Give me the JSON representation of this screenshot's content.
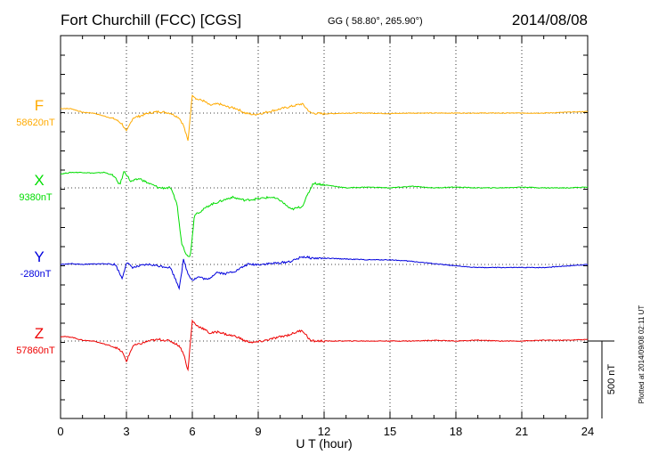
{
  "header": {
    "station": "Fort Churchill (FCC)  [CGS]",
    "coords": "GG ( 58.80°, 265.90°)",
    "date": "2014/08/08"
  },
  "footer_note": "Plotted at 2014/09/08 02:11  UT",
  "chart_data": {
    "type": "line",
    "title": "Fort Churchill (FCC)  [CGS]",
    "xlabel": "U T (hour)",
    "xlim": [
      0,
      24
    ],
    "x_ticks": [
      0,
      3,
      6,
      9,
      12,
      15,
      18,
      21,
      24
    ],
    "x_tick_labels": [
      "0",
      "3",
      "6",
      "9",
      "12",
      "15",
      "18",
      "21",
      "24"
    ],
    "grid": true,
    "scale_bar_label": "500 nT",
    "scale_bar_nT": 500,
    "series": [
      {
        "name": "F",
        "baseline_label": "58620nT",
        "baseline_nT": 58620,
        "color": "#ffaa00",
        "x": [
          0,
          0.5,
          1,
          1.5,
          2,
          2.5,
          2.8,
          3,
          3.3,
          3.6,
          4,
          4.5,
          5,
          5.4,
          5.6,
          5.8,
          6,
          6.2,
          6.5,
          6.8,
          7.2,
          7.6,
          8,
          8.4,
          8.8,
          9.2,
          9.8,
          10.4,
          11,
          11.4,
          12,
          13,
          14,
          15,
          16,
          17,
          18,
          19,
          20,
          21,
          22,
          23,
          24
        ],
        "y": [
          30,
          28,
          5,
          0,
          -20,
          -40,
          -70,
          -120,
          -30,
          -20,
          0,
          10,
          0,
          -30,
          -80,
          -180,
          120,
          90,
          80,
          50,
          60,
          40,
          30,
          0,
          -10,
          0,
          20,
          40,
          60,
          0,
          -5,
          0,
          0,
          -3,
          0,
          0,
          0,
          0,
          0,
          0,
          0,
          5,
          10
        ]
      },
      {
        "name": "X",
        "baseline_label": "9380nT",
        "baseline_nT": 9380,
        "color": "#00dd00",
        "x": [
          0,
          0.5,
          1,
          1.5,
          2,
          2.4,
          2.7,
          2.9,
          3.2,
          3.6,
          4,
          4.5,
          5,
          5.3,
          5.5,
          5.7,
          5.9,
          6.1,
          6.4,
          6.8,
          7.2,
          7.8,
          8.4,
          9,
          9.6,
          10,
          10.5,
          11,
          11.5,
          12,
          13,
          14,
          15,
          16,
          17,
          18,
          19,
          20,
          21,
          22,
          23,
          24
        ],
        "y": [
          90,
          100,
          100,
          95,
          100,
          80,
          20,
          110,
          40,
          60,
          30,
          0,
          0,
          -100,
          -350,
          -420,
          -450,
          -170,
          -150,
          -110,
          -90,
          -60,
          -80,
          -70,
          -60,
          -80,
          -140,
          -120,
          30,
          20,
          0,
          5,
          0,
          10,
          0,
          5,
          0,
          0,
          5,
          0,
          0,
          5
        ]
      },
      {
        "name": "Y",
        "baseline_label": "-280nT",
        "baseline_nT": -280,
        "color": "#0000dd",
        "x": [
          0,
          0.5,
          1,
          1.5,
          2,
          2.5,
          2.8,
          3,
          3.3,
          3.6,
          4,
          4.5,
          5,
          5.4,
          5.6,
          5.8,
          6,
          6.3,
          6.7,
          7.1,
          7.5,
          8,
          8.5,
          9,
          10,
          10.5,
          11,
          11.5,
          12,
          13,
          14,
          15,
          16,
          17,
          18,
          19,
          20,
          21,
          22,
          23,
          24
        ],
        "y": [
          0,
          5,
          0,
          3,
          5,
          0,
          -90,
          10,
          -20,
          -10,
          0,
          -10,
          -20,
          -150,
          30,
          -60,
          -100,
          -80,
          -100,
          -50,
          -60,
          -40,
          0,
          0,
          10,
          20,
          50,
          40,
          40,
          35,
          30,
          30,
          20,
          5,
          -10,
          -20,
          -20,
          -20,
          -20,
          -10,
          0
        ]
      },
      {
        "name": "Z",
        "baseline_label": "57860nT",
        "baseline_nT": 57860,
        "color": "#ee0000",
        "x": [
          0,
          0.5,
          1,
          1.5,
          2,
          2.5,
          2.8,
          3,
          3.3,
          3.6,
          4,
          4.5,
          5,
          5.4,
          5.6,
          5.8,
          6,
          6.2,
          6.5,
          6.8,
          7.2,
          7.6,
          8,
          8.4,
          8.8,
          9.2,
          9.8,
          10.4,
          11,
          11.4,
          12,
          13,
          14,
          15,
          16,
          17,
          18,
          19,
          20,
          21,
          22,
          23,
          24
        ],
        "y": [
          30,
          25,
          5,
          0,
          -20,
          -40,
          -70,
          -130,
          -30,
          -20,
          0,
          10,
          0,
          -30,
          -80,
          -190,
          130,
          100,
          80,
          50,
          60,
          40,
          30,
          0,
          -10,
          0,
          20,
          40,
          70,
          0,
          0,
          0,
          0,
          0,
          0,
          5,
          0,
          5,
          0,
          0,
          5,
          5,
          10
        ]
      }
    ]
  }
}
